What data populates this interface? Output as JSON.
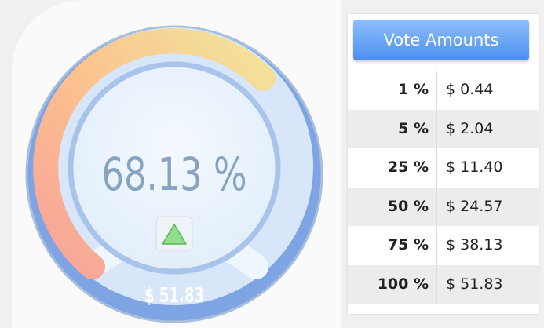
{
  "gauge": {
    "percent": "68.13 %",
    "amount": "$ 51.83"
  },
  "table": {
    "title": "Vote Amounts",
    "rows": [
      [
        "1 %",
        "$ 0.44"
      ],
      [
        "5 %",
        "$ 2.04"
      ],
      [
        "25 %",
        "$ 11.40"
      ],
      [
        "50 %",
        "$ 24.57"
      ],
      [
        "75 %",
        "$ 38.13"
      ],
      [
        "100 %",
        "$ 51.83"
      ]
    ]
  }
}
